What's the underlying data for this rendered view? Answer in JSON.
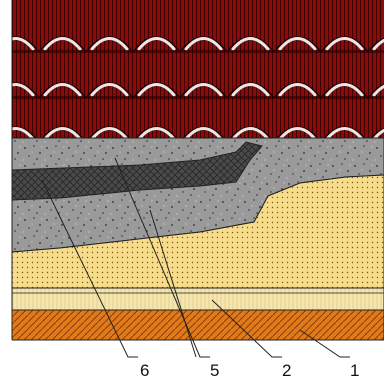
{
  "diagram": {
    "labels": [
      {
        "id": "callout-6",
        "text": "6"
      },
      {
        "id": "callout-5",
        "text": "5"
      },
      {
        "id": "callout-2",
        "text": "2"
      },
      {
        "id": "callout-1",
        "text": "1"
      }
    ],
    "colors": {
      "tile_red": "#8b0a0a",
      "tile_dark": "#3d0000",
      "tile_highlight": "#e8e8e8",
      "screed_gray": "#9a9a9a",
      "membrane_dark": "#4a4a4a",
      "sand_yellow": "#f7dc8c",
      "insulation_cream": "#f5e6b0",
      "slab_orange": "#e07a1a",
      "outline": "#222222"
    }
  }
}
